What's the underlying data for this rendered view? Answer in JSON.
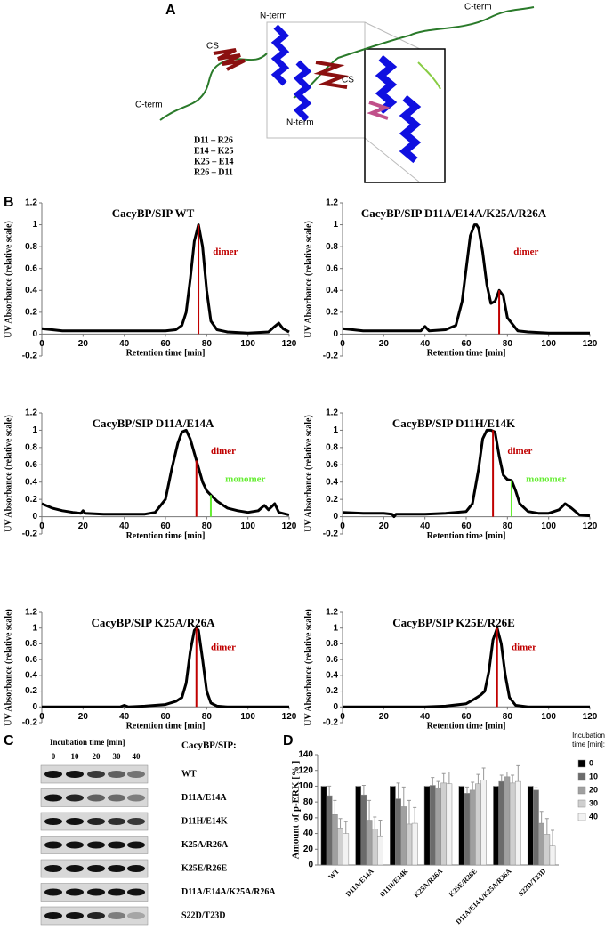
{
  "panel_labels": [
    "A",
    "B",
    "C",
    "D"
  ],
  "structure": {
    "n_term": [
      "N-term",
      "N-term"
    ],
    "c_term": [
      "C-term",
      "C-term"
    ],
    "cs": [
      "CS",
      "CS"
    ],
    "pairs": [
      "D11 – R26",
      "E14 – K25",
      "K25 – E14",
      "R26 – D11"
    ]
  },
  "chart_data": [
    {
      "type": "line",
      "title": "CacyBP/SIP WT",
      "x_label": "Retention time [min]",
      "y_label": "UV Absorbance (relative scale)",
      "x": [
        0,
        5,
        10,
        20,
        30,
        40,
        50,
        60,
        65,
        68,
        70,
        72,
        74,
        76,
        78,
        80,
        82,
        85,
        90,
        100,
        110,
        113,
        115,
        117,
        120
      ],
      "series": [
        {
          "color": "#000000",
          "values": [
            0.05,
            0.04,
            0.03,
            0.03,
            0.03,
            0.03,
            0.03,
            0.03,
            0.04,
            0.08,
            0.2,
            0.5,
            0.85,
            1.0,
            0.8,
            0.4,
            0.12,
            0.04,
            0.02,
            0.01,
            0.02,
            0.07,
            0.1,
            0.05,
            0.02
          ]
        }
      ],
      "xlim": [
        0,
        120
      ],
      "xticks": [
        0,
        20,
        40,
        60,
        80,
        100,
        120
      ],
      "ylim": [
        -0.2,
        1.2
      ],
      "yticks": [
        -0.2,
        0,
        0.2,
        0.4,
        0.6,
        0.8,
        1,
        1.2
      ],
      "markers": [
        {
          "label": "dimer",
          "x": 76,
          "y": 1.0,
          "color": "#c00000"
        }
      ]
    },
    {
      "type": "line",
      "title": "CacyBP/SIP D11A/E14A/K25A/R26A",
      "x_label": "Retention time [min]",
      "y_label": "UV Absorbance (relative scale)",
      "x": [
        0,
        5,
        10,
        20,
        30,
        38,
        40,
        42,
        50,
        55,
        58,
        60,
        62,
        64,
        65,
        66,
        68,
        70,
        72,
        74,
        76,
        78,
        80,
        85,
        90,
        100,
        110,
        120
      ],
      "series": [
        {
          "color": "#000000",
          "values": [
            0.05,
            0.04,
            0.03,
            0.03,
            0.03,
            0.03,
            0.07,
            0.03,
            0.04,
            0.08,
            0.3,
            0.6,
            0.9,
            1.0,
            1.0,
            0.97,
            0.75,
            0.45,
            0.28,
            0.3,
            0.4,
            0.35,
            0.15,
            0.03,
            0.02,
            0.01,
            0.01,
            0.01
          ]
        }
      ],
      "xlim": [
        0,
        120
      ],
      "xticks": [
        0,
        20,
        40,
        60,
        80,
        100,
        120
      ],
      "ylim": [
        -0.2,
        1.2
      ],
      "yticks": [
        -0.2,
        0,
        0.2,
        0.4,
        0.6,
        0.8,
        1,
        1.2
      ],
      "markers": [
        {
          "label": "dimer",
          "x": 76,
          "y": 0.4,
          "color": "#c00000"
        }
      ]
    },
    {
      "type": "line",
      "title": "CacyBP/SIP  D11A/E14A",
      "x_label": "Retention time [min]",
      "y_label": "UV Absorbance (relative scale)",
      "x": [
        0,
        5,
        10,
        15,
        19,
        20,
        21,
        30,
        40,
        50,
        55,
        60,
        63,
        66,
        68,
        70,
        72,
        75,
        78,
        80,
        82,
        85,
        90,
        95,
        100,
        105,
        108,
        110,
        113,
        115,
        120
      ],
      "series": [
        {
          "color": "#000000",
          "values": [
            0.15,
            0.1,
            0.07,
            0.05,
            0.04,
            0.07,
            0.04,
            0.03,
            0.03,
            0.03,
            0.05,
            0.2,
            0.55,
            0.85,
            0.98,
            1.0,
            0.9,
            0.65,
            0.4,
            0.3,
            0.25,
            0.18,
            0.1,
            0.07,
            0.05,
            0.07,
            0.13,
            0.08,
            0.15,
            0.05,
            0.02
          ]
        }
      ],
      "xlim": [
        0,
        120
      ],
      "xticks": [
        0,
        20,
        40,
        60,
        80,
        100,
        120
      ],
      "ylim": [
        -0.2,
        1.2
      ],
      "yticks": [
        -0.2,
        0,
        0.2,
        0.4,
        0.6,
        0.8,
        1,
        1.2
      ],
      "markers": [
        {
          "label": "dimer",
          "x": 75,
          "y": 0.65,
          "color": "#c00000"
        },
        {
          "label": "monomer",
          "x": 82,
          "y": 0.25,
          "color": "#66ee33"
        }
      ]
    },
    {
      "type": "line",
      "title": "CacyBP/SIP D11H/E14K",
      "x_label": "Retention time [min]",
      "y_label": "UV Absorbance (relative scale)",
      "x": [
        0,
        10,
        20,
        24,
        25,
        26,
        30,
        40,
        50,
        60,
        63,
        66,
        68,
        70,
        72,
        74,
        76,
        78,
        80,
        82,
        84,
        86,
        90,
        95,
        100,
        105,
        108,
        111,
        115,
        120
      ],
      "series": [
        {
          "color": "#000000",
          "values": [
            0.05,
            0.04,
            0.04,
            0.03,
            0.0,
            0.03,
            0.03,
            0.03,
            0.04,
            0.06,
            0.15,
            0.55,
            0.9,
            1.0,
            1.0,
            0.98,
            0.7,
            0.48,
            0.43,
            0.42,
            0.3,
            0.15,
            0.06,
            0.04,
            0.04,
            0.08,
            0.15,
            0.1,
            0.02,
            0.01
          ]
        }
      ],
      "xlim": [
        0,
        120
      ],
      "xticks": [
        0,
        20,
        40,
        60,
        80,
        100,
        120
      ],
      "ylim": [
        -0.2,
        1.2
      ],
      "yticks": [
        -0.2,
        0,
        0.2,
        0.4,
        0.6,
        0.8,
        1,
        1.2
      ],
      "markers": [
        {
          "label": "dimer",
          "x": 73,
          "y": 1.0,
          "color": "#c00000"
        },
        {
          "label": "monomer",
          "x": 82,
          "y": 0.42,
          "color": "#66ee33"
        }
      ]
    },
    {
      "type": "line",
      "title": "CacyBP/SIP K25A/R26A",
      "x_label": "Retention time [min]",
      "y_label": "UV Absorbance (relative scale)",
      "x": [
        0,
        10,
        20,
        30,
        38,
        40,
        42,
        50,
        60,
        65,
        68,
        70,
        72,
        74,
        75,
        76,
        78,
        80,
        82,
        85,
        90,
        100,
        110,
        120
      ],
      "series": [
        {
          "color": "#000000",
          "values": [
            0,
            0,
            0,
            0,
            0,
            0.02,
            0,
            0.01,
            0.03,
            0.07,
            0.12,
            0.3,
            0.7,
            0.97,
            1.0,
            0.97,
            0.6,
            0.2,
            0.05,
            0.01,
            0,
            0,
            0,
            0
          ]
        }
      ],
      "xlim": [
        0,
        120
      ],
      "xticks": [
        0,
        20,
        40,
        60,
        80,
        100,
        120
      ],
      "ylim": [
        -0.2,
        1.2
      ],
      "yticks": [
        -0.2,
        0,
        0.2,
        0.4,
        0.6,
        0.8,
        1,
        1.2
      ],
      "markers": [
        {
          "label": "dimer",
          "x": 75,
          "y": 1.0,
          "color": "#c00000"
        }
      ]
    },
    {
      "type": "line",
      "title": "CacyBP/SIP K25E/R26E",
      "x_label": "Retention time [min]",
      "y_label": "UV Absorbance (relative scale)",
      "x": [
        0,
        10,
        20,
        30,
        40,
        50,
        60,
        64,
        67,
        69,
        71,
        73,
        75,
        77,
        79,
        81,
        84,
        90,
        100,
        110,
        120
      ],
      "series": [
        {
          "color": "#000000",
          "values": [
            0,
            0,
            0,
            0,
            0,
            0.01,
            0.04,
            0.1,
            0.15,
            0.2,
            0.45,
            0.85,
            1.0,
            0.8,
            0.4,
            0.12,
            0.02,
            0,
            0,
            0,
            0
          ]
        }
      ],
      "xlim": [
        0,
        120
      ],
      "xticks": [
        0,
        20,
        40,
        60,
        80,
        100,
        120
      ],
      "ylim": [
        -0.2,
        1.2
      ],
      "yticks": [
        -0.2,
        0,
        0.2,
        0.4,
        0.6,
        0.8,
        1,
        1.2
      ],
      "markers": [
        {
          "label": "dimer",
          "x": 75,
          "y": 1.0,
          "color": "#c00000"
        }
      ]
    },
    {
      "type": "bar",
      "y_label": "Amount of p-ERK [% ]",
      "legend_title": "Incubation time [min]:",
      "categories": [
        "WT",
        "D11A/E14A",
        "D11H/E14K",
        "K25A/R26A",
        "K25E/R26E",
        "D11A/E14A/K25A/R26A",
        "S22D/T23D"
      ],
      "series": [
        {
          "name": "0",
          "color": "#000000",
          "values": [
            100,
            100,
            100,
            100,
            100,
            100,
            100
          ],
          "errors": [
            0,
            0,
            0,
            0,
            0,
            0,
            0
          ]
        },
        {
          "name": "10",
          "color": "#6b6b6b",
          "values": [
            88,
            89,
            84,
            101,
            91,
            106,
            95
          ],
          "errors": [
            12,
            12,
            20,
            10,
            8,
            8,
            3
          ]
        },
        {
          "name": "20",
          "color": "#a0a0a0",
          "values": [
            64,
            57,
            74,
            98,
            95,
            112,
            53
          ],
          "errors": [
            18,
            25,
            25,
            8,
            10,
            6,
            15
          ]
        },
        {
          "name": "30",
          "color": "#cfcfcf",
          "values": [
            47,
            46,
            52,
            104,
            103,
            104,
            39
          ],
          "errors": [
            12,
            15,
            30,
            12,
            12,
            10,
            20
          ]
        },
        {
          "name": "40",
          "color": "#f2f2f2",
          "values": [
            40,
            37,
            53,
            103,
            108,
            106,
            24
          ],
          "errors": [
            15,
            20,
            20,
            15,
            15,
            20,
            20
          ]
        }
      ],
      "ylim": [
        0,
        140
      ],
      "yticks": [
        0,
        20,
        40,
        60,
        80,
        100,
        120,
        140
      ]
    }
  ],
  "blot": {
    "header": "Incubation time [min]",
    "times": [
      0,
      10,
      20,
      30,
      40
    ],
    "sample_label": "CacyBP/SIP:",
    "rows": [
      "WT",
      "D11A/E14A",
      "D11H/E14K",
      "K25A/R26A",
      "K25E/R26E",
      "D11A/E14A/K25A/R26A",
      "S22D/T23D"
    ]
  }
}
